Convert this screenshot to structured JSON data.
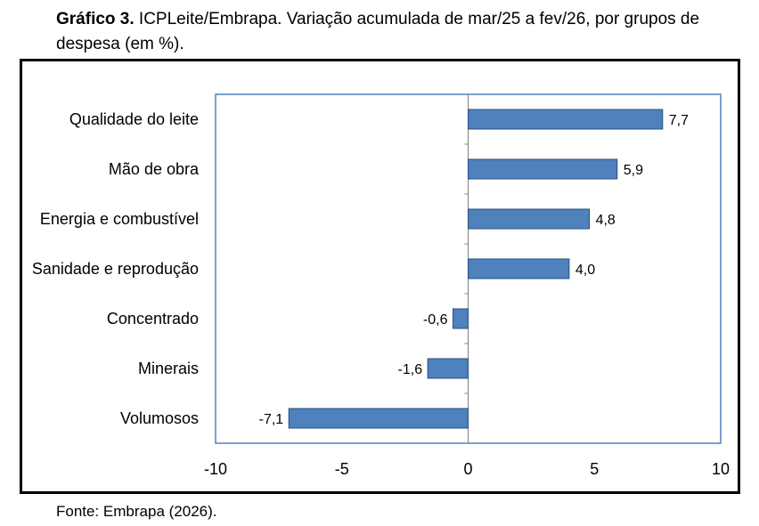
{
  "caption": {
    "lead": "Gráfico 3.",
    "text": " ICPLeite/Embrapa. Variação acumulada de mar/25 a fev/26, por grupos de despesa (em %)."
  },
  "source": "Fonte: Embrapa (2026).",
  "colors": {
    "bar": "#4f81bd",
    "bar_stroke": "#2a4f7e",
    "plot_border": "#4f81bd"
  },
  "chart_data": {
    "type": "bar",
    "orientation": "horizontal",
    "title": "ICPLeite/Embrapa. Variação acumulada de mar/25 a fev/26, por grupos de despesa (em %).",
    "xlabel": "",
    "ylabel": "",
    "xlim": [
      -10,
      10
    ],
    "ticks": [
      -10,
      -5,
      0,
      5,
      10
    ],
    "categories": [
      "Qualidade do leite",
      "Mão de obra",
      "Energia e combustível",
      "Sanidade e reprodução",
      "Concentrado",
      "Minerais",
      "Volumosos"
    ],
    "values": [
      7.7,
      5.9,
      4.8,
      4.0,
      -0.6,
      -1.6,
      -7.1
    ],
    "value_labels": [
      "7,7",
      "5,9",
      "4,8",
      "4,0",
      "-0,6",
      "-1,6",
      "-7,1"
    ],
    "grid": false,
    "legend": "none"
  }
}
